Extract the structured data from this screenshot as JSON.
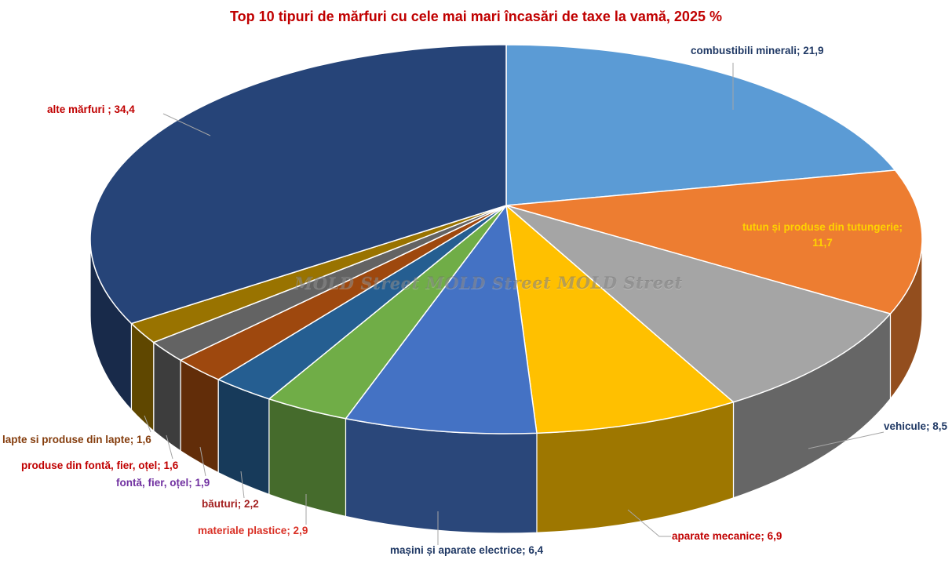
{
  "title": {
    "text": "Top 10 tipuri de mărfuri cu cele mai mari încasări de taxe la vamă, 2025 %",
    "color": "#C00000"
  },
  "watermark": {
    "text": "MOLD Street MOLD Street MOLD Street"
  },
  "chart_data": {
    "type": "pie",
    "style": "3d",
    "unit": "%",
    "start_angle_deg": 0,
    "direction": "clockwise",
    "title": "Top 10 tipuri de mărfuri cu cele mai mari încasări de taxe la vamă, 2025 %",
    "slices": [
      {
        "label": "combustibili minerali",
        "value": 21.9,
        "value_display": "21,9",
        "callout": "combustibili minerali; 21,9",
        "color": "#5B9BD5",
        "label_color": "#1F3864"
      },
      {
        "label": "tutun și produse din tutungerie",
        "value": 11.7,
        "value_display": "11,7",
        "callout": "tutun și produse din tutungerie; 11,7",
        "callout_line1": "tutun și produse din tutungerie;",
        "callout_line2": "11,7",
        "color": "#ED7D31",
        "label_color": "#FFD200"
      },
      {
        "label": "vehicule",
        "value": 8.5,
        "value_display": "8,5",
        "callout": "vehicule; 8,5",
        "color": "#A5A5A5",
        "label_color": "#1F3864"
      },
      {
        "label": "aparate mecanice",
        "value": 6.9,
        "value_display": "6,9",
        "callout": "aparate mecanice; 6,9",
        "color": "#FFC000",
        "label_color": "#C00000"
      },
      {
        "label": "mașini și aparate electrice",
        "value": 6.4,
        "value_display": "6,4",
        "callout": "mașini și aparate electrice; 6,4",
        "color": "#4472C4",
        "label_color": "#1F3864"
      },
      {
        "label": "materiale plastice",
        "value": 2.9,
        "value_display": "2,9",
        "callout": "materiale plastice; 2,9",
        "color": "#70AD47",
        "label_color": "#D93025"
      },
      {
        "label": "băuturi",
        "value": 2.2,
        "value_display": "2,2",
        "callout": "băuturi; 2,2",
        "color": "#255E91",
        "label_color": "#A32020"
      },
      {
        "label": "fontă, fier, oțel",
        "value": 1.9,
        "value_display": "1,9",
        "callout": "fontă, fier, oțel; 1,9",
        "color": "#9E480E",
        "label_color": "#7030A0"
      },
      {
        "label": "produse din fontă, fier, oțel",
        "value": 1.6,
        "value_display": "1,6",
        "callout": "produse din fontă, fier, oțel; 1,6",
        "color": "#636363",
        "label_color": "#C00000"
      },
      {
        "label": "lapte si produse din lapte",
        "value": 1.6,
        "value_display": "1,6",
        "callout": "lapte si produse din lapte; 1,6",
        "color": "#997300",
        "label_color": "#843C0C"
      },
      {
        "label": "alte mărfuri",
        "value": 34.4,
        "value_display": "34,4",
        "callout": "alte mărfuri ; 34,4",
        "color": "#264478",
        "label_color": "#C00000"
      }
    ]
  }
}
